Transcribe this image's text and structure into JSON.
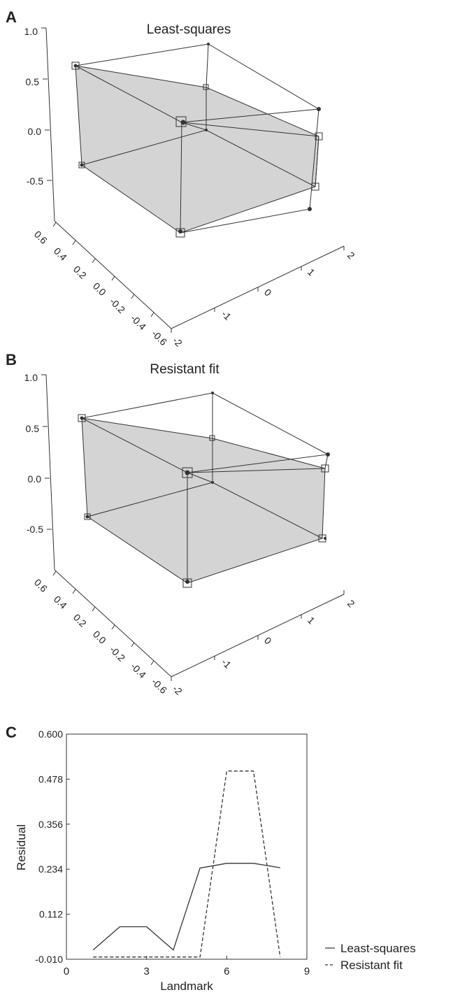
{
  "colors": {
    "face": "#d4d4d4",
    "line": "#333333",
    "marker": "#333333"
  },
  "panels": [
    {
      "letter": "A",
      "title": "Least-squares",
      "z_ticks": [
        "1.0",
        "0.5",
        "0.0",
        "-0.5"
      ],
      "depth_ticks": [
        "0.6",
        "0.4",
        "0.2",
        "0.0",
        "-0.2",
        "-0.4",
        "-0.6"
      ],
      "x_ticks": [
        "-2",
        "-1",
        "0",
        "1",
        "2"
      ]
    },
    {
      "letter": "B",
      "title": "Resistant fit",
      "z_ticks": [
        "1.0",
        "0.5",
        "0.0",
        "-0.5"
      ],
      "depth_ticks": [
        "0.6",
        "0.4",
        "0.2",
        "0.0",
        "-0.2",
        "-0.4",
        "-0.6"
      ],
      "x_ticks": [
        "-2",
        "-1",
        "0",
        "1",
        "2"
      ]
    }
  ],
  "chart_data": [
    {
      "type": "scatter",
      "panel": "A",
      "title": "Least-squares",
      "zlim": [
        -0.5,
        1.0
      ],
      "ylim": [
        -0.6,
        0.6
      ],
      "xlim": [
        -2,
        2
      ]
    },
    {
      "type": "scatter",
      "panel": "B",
      "title": "Resistant fit",
      "zlim": [
        -0.5,
        1.0
      ],
      "ylim": [
        -0.6,
        0.6
      ],
      "xlim": [
        -2,
        2
      ]
    },
    {
      "type": "line",
      "panel": "C",
      "xlabel": "Landmark",
      "ylabel": "Residual",
      "xlim": [
        0,
        9
      ],
      "ylim": [
        -0.01,
        0.6
      ],
      "x_ticks": [
        "0",
        "3",
        "6",
        "9"
      ],
      "y_ticks": [
        "0.600",
        "0.478",
        "0.356",
        "0.234",
        "0.112",
        "-0.010"
      ],
      "x": [
        1,
        2,
        3,
        4,
        5,
        6,
        7,
        8
      ],
      "series": [
        {
          "name": "Least-squares",
          "style": "solid",
          "values": [
            0.015,
            0.078,
            0.078,
            0.015,
            0.237,
            0.25,
            0.25,
            0.238
          ]
        },
        {
          "name": "Resistant fit",
          "style": "dashed",
          "values": [
            -0.004,
            -0.004,
            -0.004,
            -0.004,
            -0.004,
            0.5,
            0.5,
            -0.004
          ]
        }
      ],
      "legend_position": "right"
    }
  ]
}
